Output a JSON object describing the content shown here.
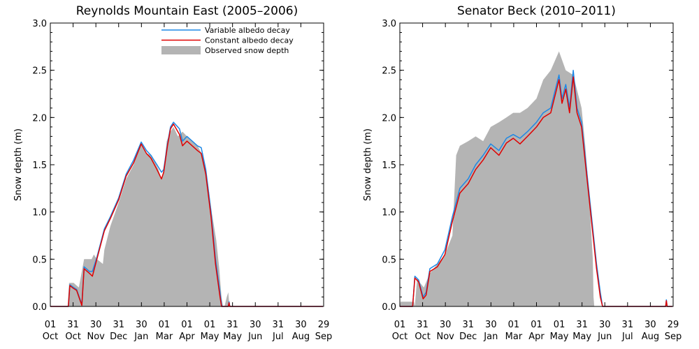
{
  "chart_data": [
    {
      "type": "area",
      "title": "Reynolds Mountain East (2005–2006)",
      "xlabel": "",
      "ylabel": "Snow depth (m)",
      "ylim": [
        0,
        3.0
      ],
      "yticks": [
        "0.0",
        "0.5",
        "1.0",
        "1.5",
        "2.0",
        "2.5",
        "3.0"
      ],
      "xticks": [
        {
          "day": "01",
          "month": "Oct"
        },
        {
          "day": "31",
          "month": "Oct"
        },
        {
          "day": "30",
          "month": "Nov"
        },
        {
          "day": "31",
          "month": "Dec"
        },
        {
          "day": "30",
          "month": "Jan"
        },
        {
          "day": "01",
          "month": "Mar"
        },
        {
          "day": "01",
          "month": "Apr"
        },
        {
          "day": "01",
          "month": "May"
        },
        {
          "day": "31",
          "month": "May"
        },
        {
          "day": "30",
          "month": "Jun"
        },
        {
          "day": "31",
          "month": "Jul"
        },
        {
          "day": "30",
          "month": "Aug"
        },
        {
          "day": "29",
          "month": "Sep"
        }
      ],
      "legend": {
        "position": "top-right",
        "entries": [
          "Variable albedo decay",
          "Constant albedo decay",
          "Observed snow depth"
        ]
      },
      "colors": {
        "variable": "#1e88e5",
        "constant": "#e00000",
        "observed": "#b4b4b4"
      },
      "series": [
        {
          "name": "Observed snow depth",
          "style": "area",
          "x": [
            "2005-10-01",
            "2005-10-24",
            "2005-10-26",
            "2005-11-01",
            "2005-11-08",
            "2005-11-15",
            "2005-11-25",
            "2005-11-28",
            "2005-12-02",
            "2005-12-10",
            "2005-12-12",
            "2005-12-20",
            "2005-12-31",
            "2006-01-10",
            "2006-01-20",
            "2006-01-30",
            "2006-02-06",
            "2006-02-13",
            "2006-02-22",
            "2006-02-26",
            "2006-03-01",
            "2006-03-05",
            "2006-03-10",
            "2006-03-14",
            "2006-03-20",
            "2006-03-26",
            "2006-04-01",
            "2006-04-08",
            "2006-04-15",
            "2006-04-22",
            "2006-04-29",
            "2006-05-04",
            "2006-05-10",
            "2006-05-14",
            "2006-05-17",
            "2006-05-19",
            "2006-05-21",
            "2006-05-24",
            "2006-05-26",
            "2006-05-27",
            "2006-05-28",
            "2006-09-29"
          ],
          "values": [
            0,
            0,
            0.25,
            0.25,
            0.2,
            0.5,
            0.5,
            0.55,
            0.5,
            0.45,
            0.6,
            0.85,
            1.1,
            1.35,
            1.5,
            1.72,
            1.62,
            1.6,
            1.45,
            1.35,
            1.45,
            1.75,
            1.85,
            1.9,
            1.8,
            1.85,
            1.8,
            1.75,
            1.7,
            1.6,
            1.3,
            1.0,
            0.7,
            0.4,
            0.1,
            0,
            0,
            0.1,
            0.15,
            0.05,
            0,
            0
          ]
        },
        {
          "name": "Variable albedo decay",
          "style": "line",
          "x": [
            "2005-10-01",
            "2005-10-25",
            "2005-10-27",
            "2005-11-01",
            "2005-11-05",
            "2005-11-12",
            "2005-11-15",
            "2005-11-22",
            "2005-11-26",
            "2005-12-02",
            "2005-12-12",
            "2005-12-20",
            "2005-12-31",
            "2006-01-10",
            "2006-01-20",
            "2006-01-30",
            "2006-02-06",
            "2006-02-12",
            "2006-02-20",
            "2006-02-26",
            "2006-03-01",
            "2006-03-06",
            "2006-03-10",
            "2006-03-14",
            "2006-03-22",
            "2006-03-26",
            "2006-04-01",
            "2006-04-08",
            "2006-04-15",
            "2006-04-20",
            "2006-04-26",
            "2006-05-03",
            "2006-05-09",
            "2006-05-15",
            "2006-05-17",
            "2006-05-18",
            "2006-05-19",
            "2006-05-26",
            "2006-05-27",
            "2006-05-28",
            "2006-09-29"
          ],
          "values": [
            0,
            0,
            0.23,
            0.2,
            0.18,
            0.02,
            0.42,
            0.37,
            0.37,
            0.52,
            0.82,
            0.95,
            1.15,
            1.4,
            1.55,
            1.74,
            1.65,
            1.6,
            1.5,
            1.42,
            1.45,
            1.72,
            1.9,
            1.95,
            1.88,
            1.75,
            1.8,
            1.75,
            1.7,
            1.68,
            1.45,
            1.0,
            0.5,
            0.15,
            0.02,
            0,
            0,
            0,
            0.05,
            0,
            0
          ]
        },
        {
          "name": "Constant albedo decay",
          "style": "line",
          "x": [
            "2005-10-01",
            "2005-10-25",
            "2005-10-27",
            "2005-11-01",
            "2005-11-05",
            "2005-11-12",
            "2005-11-15",
            "2005-11-22",
            "2005-11-26",
            "2005-12-02",
            "2005-12-12",
            "2005-12-20",
            "2005-12-31",
            "2006-01-10",
            "2006-01-20",
            "2006-01-30",
            "2006-02-06",
            "2006-02-12",
            "2006-02-20",
            "2006-02-26",
            "2006-03-01",
            "2006-03-06",
            "2006-03-10",
            "2006-03-14",
            "2006-03-22",
            "2006-03-26",
            "2006-04-01",
            "2006-04-08",
            "2006-04-15",
            "2006-04-20",
            "2006-04-26",
            "2006-05-03",
            "2006-05-09",
            "2006-05-15",
            "2006-05-17",
            "2006-05-18",
            "2006-05-19",
            "2006-05-26",
            "2006-05-27",
            "2006-05-28",
            "2006-09-29"
          ],
          "values": [
            0,
            0,
            0.22,
            0.19,
            0.17,
            0.01,
            0.4,
            0.35,
            0.32,
            0.5,
            0.8,
            0.93,
            1.13,
            1.38,
            1.52,
            1.72,
            1.62,
            1.57,
            1.45,
            1.35,
            1.42,
            1.7,
            1.88,
            1.93,
            1.82,
            1.7,
            1.75,
            1.7,
            1.65,
            1.62,
            1.4,
            0.95,
            0.45,
            0.1,
            0,
            0,
            0,
            0,
            0.04,
            0,
            0
          ]
        }
      ]
    },
    {
      "type": "area",
      "title": "Senator Beck (2010–2011)",
      "xlabel": "",
      "ylabel": "Snow depth (m)",
      "ylim": [
        0,
        3.0
      ],
      "yticks": [
        "0.0",
        "0.5",
        "1.0",
        "1.5",
        "2.0",
        "2.5",
        "3.0"
      ],
      "xticks": [
        {
          "day": "01",
          "month": "Oct"
        },
        {
          "day": "31",
          "month": "Oct"
        },
        {
          "day": "30",
          "month": "Nov"
        },
        {
          "day": "31",
          "month": "Dec"
        },
        {
          "day": "30",
          "month": "Jan"
        },
        {
          "day": "01",
          "month": "Mar"
        },
        {
          "day": "01",
          "month": "Apr"
        },
        {
          "day": "01",
          "month": "May"
        },
        {
          "day": "31",
          "month": "May"
        },
        {
          "day": "30",
          "month": "Jun"
        },
        {
          "day": "31",
          "month": "Jul"
        },
        {
          "day": "30",
          "month": "Aug"
        },
        {
          "day": "29",
          "month": "Sep"
        }
      ],
      "colors": {
        "variable": "#1e88e5",
        "constant": "#e00000",
        "observed": "#b4b4b4"
      },
      "series": [
        {
          "name": "Observed snow depth",
          "style": "area",
          "x": [
            "2010-10-01",
            "2010-10-02",
            "2010-10-20",
            "2010-10-21",
            "2010-10-24",
            "2010-10-28",
            "2010-11-02",
            "2010-11-10",
            "2010-11-20",
            "2010-11-30",
            "2010-12-10",
            "2010-12-15",
            "2010-12-20",
            "2010-12-31",
            "2011-01-10",
            "2011-01-20",
            "2011-01-30",
            "2011-02-10",
            "2011-02-20",
            "2011-03-01",
            "2011-03-10",
            "2011-03-20",
            "2011-04-01",
            "2011-04-10",
            "2011-04-20",
            "2011-05-01",
            "2011-05-10",
            "2011-05-20",
            "2011-05-31",
            "2011-06-05",
            "2011-06-10",
            "2011-06-15",
            "2011-06-16",
            "2011-06-17",
            "2011-09-29"
          ],
          "values": [
            0,
            0.05,
            0.05,
            0,
            0.3,
            0.25,
            0.2,
            0.35,
            0.45,
            0.55,
            0.75,
            1.6,
            1.7,
            1.75,
            1.8,
            1.75,
            1.9,
            1.95,
            2.0,
            2.05,
            2.05,
            2.1,
            2.2,
            2.4,
            2.5,
            2.7,
            2.5,
            2.45,
            2.1,
            1.7,
            1.2,
            0.5,
            0.1,
            0,
            0
          ]
        },
        {
          "name": "Variable albedo decay",
          "style": "line",
          "x": [
            "2010-10-01",
            "2010-10-18",
            "2010-10-21",
            "2010-10-26",
            "2010-11-01",
            "2010-11-05",
            "2010-11-10",
            "2010-11-20",
            "2010-11-30",
            "2010-12-10",
            "2010-12-20",
            "2010-12-31",
            "2011-01-10",
            "2011-01-20",
            "2011-01-30",
            "2011-02-10",
            "2011-02-20",
            "2011-03-01",
            "2011-03-10",
            "2011-03-20",
            "2011-04-01",
            "2011-04-10",
            "2011-04-20",
            "2011-05-01",
            "2011-05-05",
            "2011-05-10",
            "2011-05-15",
            "2011-05-20",
            "2011-05-25",
            "2011-05-31",
            "2011-06-10",
            "2011-06-20",
            "2011-06-25",
            "2011-06-28",
            "2011-07-01",
            "2011-09-20",
            "2011-09-21",
            "2011-09-22",
            "2011-09-29"
          ],
          "values": [
            0,
            0,
            0.32,
            0.28,
            0.1,
            0.15,
            0.4,
            0.45,
            0.6,
            0.95,
            1.25,
            1.35,
            1.5,
            1.6,
            1.72,
            1.65,
            1.78,
            1.82,
            1.78,
            1.85,
            1.95,
            2.05,
            2.1,
            2.45,
            2.2,
            2.35,
            2.1,
            2.5,
            2.1,
            1.95,
            1.2,
            0.45,
            0.15,
            0,
            0,
            0,
            0.07,
            0,
            0
          ]
        },
        {
          "name": "Constant albedo decay",
          "style": "line",
          "x": [
            "2010-10-01",
            "2010-10-18",
            "2010-10-21",
            "2010-10-26",
            "2010-11-01",
            "2010-11-05",
            "2010-11-10",
            "2010-11-20",
            "2010-11-30",
            "2010-12-10",
            "2010-12-20",
            "2010-12-31",
            "2011-01-10",
            "2011-01-20",
            "2011-01-30",
            "2011-02-10",
            "2011-02-20",
            "2011-03-01",
            "2011-03-10",
            "2011-03-20",
            "2011-04-01",
            "2011-04-10",
            "2011-04-20",
            "2011-05-01",
            "2011-05-05",
            "2011-05-10",
            "2011-05-15",
            "2011-05-20",
            "2011-05-25",
            "2011-05-31",
            "2011-06-10",
            "2011-06-20",
            "2011-06-25",
            "2011-06-28",
            "2011-07-01",
            "2011-09-20",
            "2011-09-21",
            "2011-09-22",
            "2011-09-29"
          ],
          "values": [
            0,
            0,
            0.3,
            0.26,
            0.08,
            0.12,
            0.37,
            0.42,
            0.55,
            0.9,
            1.2,
            1.3,
            1.45,
            1.55,
            1.68,
            1.6,
            1.73,
            1.78,
            1.72,
            1.8,
            1.9,
            2.0,
            2.05,
            2.4,
            2.15,
            2.3,
            2.05,
            2.43,
            2.05,
            1.9,
            1.15,
            0.4,
            0.1,
            0,
            0,
            0,
            0.06,
            0,
            0
          ]
        }
      ]
    }
  ]
}
